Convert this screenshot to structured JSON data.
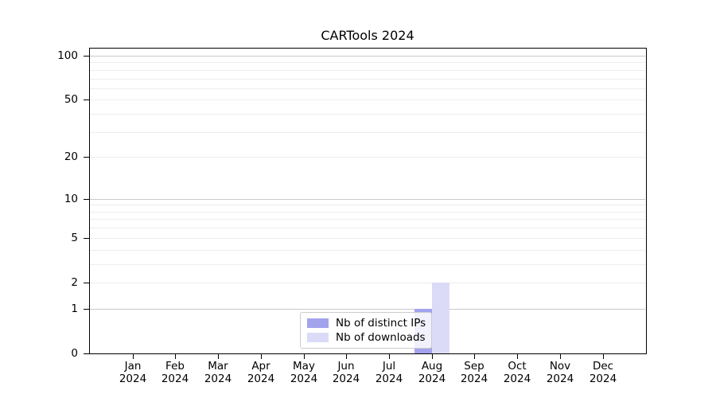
{
  "title": "CARTools 2024",
  "chart_data": {
    "type": "bar",
    "title": "CARTools 2024",
    "x_months": [
      "Jan",
      "Feb",
      "Mar",
      "Apr",
      "May",
      "Jun",
      "Jul",
      "Aug",
      "Sep",
      "Oct",
      "Nov",
      "Dec"
    ],
    "x_year": "2024",
    "series": [
      {
        "name": "Nb of distinct IPs",
        "color": "#a3a3ed",
        "values": [
          0,
          0,
          0,
          0,
          0,
          0,
          0,
          1,
          0,
          0,
          0,
          0
        ]
      },
      {
        "name": "Nb of downloads",
        "color": "#dbdbf8",
        "values": [
          0,
          0,
          0,
          0,
          0,
          0,
          0,
          2,
          0,
          0,
          0,
          0
        ]
      }
    ],
    "y_axis": {
      "scale": "log1p",
      "tick_values": [
        0,
        1,
        2,
        5,
        10,
        20,
        50,
        100
      ],
      "tick_labels": [
        "0",
        "1",
        "2",
        "5",
        "10",
        "20",
        "50",
        "100"
      ],
      "range": [
        0,
        113
      ],
      "major_gridline_values": [
        1,
        10,
        100
      ],
      "minor_gridline_values": [
        2,
        3,
        4,
        5,
        6,
        7,
        8,
        9,
        20,
        30,
        40,
        50,
        60,
        70,
        80,
        90
      ]
    },
    "legend": {
      "position": "inside-bottom-center",
      "items": [
        "Nb of distinct IPs",
        "Nb of downloads"
      ]
    },
    "colors": {
      "major_gridline": "#c9c9c9",
      "minor_gridline": "#ededed",
      "axis_spine": "#000000",
      "tick_label": "#000000",
      "legend_border": "#cccccc",
      "background": "#ffffff"
    }
  }
}
